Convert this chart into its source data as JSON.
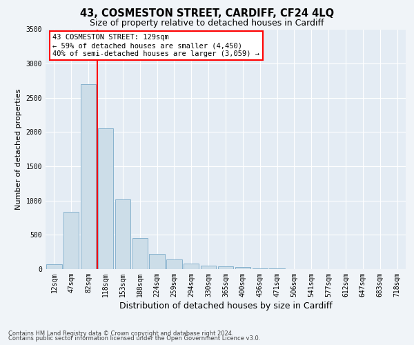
{
  "title": "43, COSMESTON STREET, CARDIFF, CF24 4LQ",
  "subtitle": "Size of property relative to detached houses in Cardiff",
  "xlabel": "Distribution of detached houses by size in Cardiff",
  "ylabel": "Number of detached properties",
  "categories": [
    "12sqm",
    "47sqm",
    "82sqm",
    "118sqm",
    "153sqm",
    "188sqm",
    "224sqm",
    "259sqm",
    "294sqm",
    "330sqm",
    "365sqm",
    "400sqm",
    "436sqm",
    "471sqm",
    "506sqm",
    "541sqm",
    "577sqm",
    "612sqm",
    "647sqm",
    "683sqm",
    "718sqm"
  ],
  "values": [
    75,
    840,
    2700,
    2050,
    1020,
    450,
    220,
    140,
    80,
    55,
    45,
    30,
    15,
    10,
    5,
    3,
    2,
    1,
    1,
    0,
    0
  ],
  "bar_color": "#ccdde8",
  "bar_edge_color": "#7aaac8",
  "red_line_index": 3,
  "annotation_line1": "43 COSMESTON STREET: 129sqm",
  "annotation_line2": "← 59% of detached houses are smaller (4,450)",
  "annotation_line3": "40% of semi-detached houses are larger (3,059) →",
  "ylim": [
    0,
    3500
  ],
  "yticks": [
    0,
    500,
    1000,
    1500,
    2000,
    2500,
    3000,
    3500
  ],
  "footer1": "Contains HM Land Registry data © Crown copyright and database right 2024.",
  "footer2": "Contains public sector information licensed under the Open Government Licence v3.0.",
  "bg_color": "#f0f4f8",
  "plot_bg_color": "#e4ecf4",
  "title_fontsize": 10.5,
  "subtitle_fontsize": 9,
  "tick_fontsize": 7,
  "ylabel_fontsize": 8,
  "xlabel_fontsize": 9,
  "annotation_fontsize": 7.5,
  "footer_fontsize": 6
}
